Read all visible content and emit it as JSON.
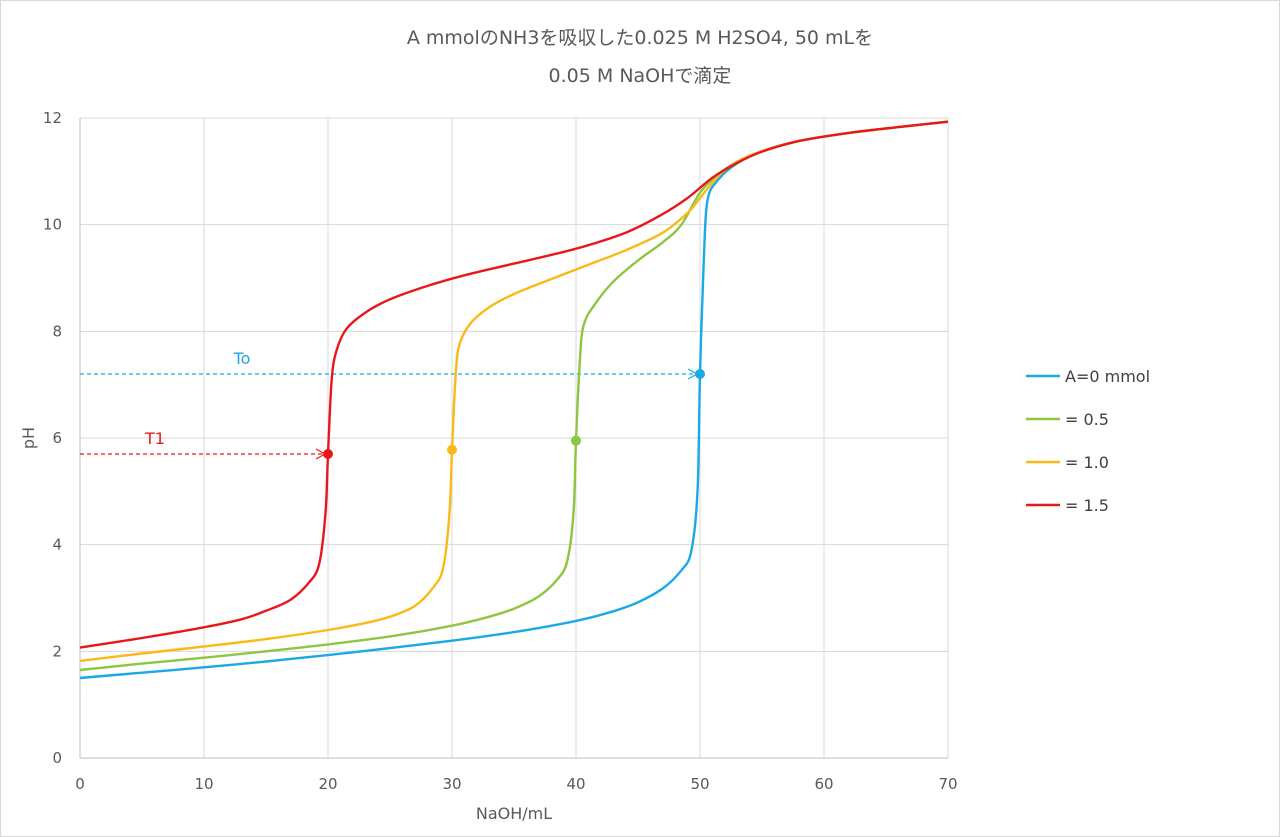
{
  "chart_data": {
    "type": "line",
    "title": [
      "A mmolのNH3を吸収した0.025 M H2SO4, 50 mLを",
      "0.05 M NaOHで滴定"
    ],
    "xlabel": "NaOH/mL",
    "ylabel": "pH",
    "xlim": [
      0,
      70
    ],
    "ylim": [
      0,
      12
    ],
    "xticks": [
      0,
      10,
      20,
      30,
      40,
      50,
      60,
      70
    ],
    "yticks": [
      0,
      2,
      4,
      6,
      8,
      10,
      12
    ],
    "grid": true,
    "legend_position": "right",
    "series": [
      {
        "name": "A=0 mmol",
        "color": "#1ba9e6",
        "points": [
          [
            0,
            1.5
          ],
          [
            5,
            1.6
          ],
          [
            10,
            1.7
          ],
          [
            15,
            1.81
          ],
          [
            20,
            1.93
          ],
          [
            25,
            2.06
          ],
          [
            30,
            2.2
          ],
          [
            35,
            2.36
          ],
          [
            40,
            2.57
          ],
          [
            43,
            2.75
          ],
          [
            45,
            2.92
          ],
          [
            47,
            3.18
          ],
          [
            48.5,
            3.52
          ],
          [
            49.3,
            3.88
          ],
          [
            49.8,
            5.0
          ],
          [
            50,
            7.2
          ],
          [
            50.3,
            9.3
          ],
          [
            50.6,
            10.45
          ],
          [
            51.5,
            10.85
          ],
          [
            53,
            11.15
          ],
          [
            55,
            11.38
          ],
          [
            58,
            11.57
          ],
          [
            62,
            11.72
          ],
          [
            66,
            11.83
          ],
          [
            70,
            11.93
          ]
        ],
        "marker": [
          50,
          7.2
        ]
      },
      {
        "name": "= 0.5",
        "color": "#8dc63f",
        "points": [
          [
            0,
            1.65
          ],
          [
            5,
            1.77
          ],
          [
            10,
            1.88
          ],
          [
            15,
            2.0
          ],
          [
            20,
            2.13
          ],
          [
            25,
            2.28
          ],
          [
            30,
            2.48
          ],
          [
            33,
            2.65
          ],
          [
            35,
            2.8
          ],
          [
            37,
            3.03
          ],
          [
            38.5,
            3.35
          ],
          [
            39.3,
            3.7
          ],
          [
            39.8,
            4.6
          ],
          [
            40,
            5.95
          ],
          [
            40.3,
            7.4
          ],
          [
            40.6,
            8.1
          ],
          [
            41.5,
            8.5
          ],
          [
            43,
            8.93
          ],
          [
            45,
            9.33
          ],
          [
            47,
            9.67
          ],
          [
            48.5,
            10.0
          ],
          [
            50,
            10.6
          ],
          [
            51.5,
            10.95
          ],
          [
            53,
            11.18
          ],
          [
            55,
            11.38
          ],
          [
            58,
            11.57
          ],
          [
            62,
            11.72
          ],
          [
            66,
            11.83
          ],
          [
            70,
            11.93
          ]
        ],
        "marker": [
          40,
          5.95
        ]
      },
      {
        "name": "= 1.0",
        "color": "#fbb917",
        "points": [
          [
            0,
            1.82
          ],
          [
            5,
            1.96
          ],
          [
            10,
            2.09
          ],
          [
            15,
            2.23
          ],
          [
            20,
            2.4
          ],
          [
            23,
            2.53
          ],
          [
            25,
            2.65
          ],
          [
            27,
            2.85
          ],
          [
            28.5,
            3.2
          ],
          [
            29.3,
            3.58
          ],
          [
            29.8,
            4.6
          ],
          [
            30,
            5.78
          ],
          [
            30.3,
            7.2
          ],
          [
            30.6,
            7.75
          ],
          [
            31.5,
            8.15
          ],
          [
            33,
            8.45
          ],
          [
            35,
            8.7
          ],
          [
            38,
            8.98
          ],
          [
            41,
            9.25
          ],
          [
            44,
            9.52
          ],
          [
            47,
            9.85
          ],
          [
            49,
            10.22
          ],
          [
            50,
            10.5
          ],
          [
            51.5,
            10.92
          ],
          [
            53,
            11.18
          ],
          [
            55,
            11.38
          ],
          [
            58,
            11.57
          ],
          [
            62,
            11.72
          ],
          [
            66,
            11.83
          ],
          [
            70,
            11.93
          ]
        ],
        "marker": [
          30,
          5.78
        ]
      },
      {
        "name": "= 1.5",
        "color": "#e8171c",
        "points": [
          [
            0,
            2.07
          ],
          [
            5,
            2.25
          ],
          [
            10,
            2.45
          ],
          [
            13,
            2.6
          ],
          [
            15,
            2.76
          ],
          [
            17,
            2.97
          ],
          [
            18.5,
            3.3
          ],
          [
            19.3,
            3.65
          ],
          [
            19.8,
            4.6
          ],
          [
            20,
            5.7
          ],
          [
            20.3,
            7.1
          ],
          [
            20.7,
            7.65
          ],
          [
            21.5,
            8.05
          ],
          [
            23,
            8.35
          ],
          [
            25,
            8.6
          ],
          [
            28,
            8.85
          ],
          [
            31,
            9.05
          ],
          [
            35,
            9.27
          ],
          [
            40,
            9.55
          ],
          [
            44,
            9.85
          ],
          [
            47,
            10.2
          ],
          [
            49,
            10.5
          ],
          [
            51,
            10.88
          ],
          [
            53,
            11.16
          ],
          [
            55,
            11.37
          ],
          [
            58,
            11.57
          ],
          [
            62,
            11.72
          ],
          [
            66,
            11.83
          ],
          [
            70,
            11.93
          ]
        ],
        "marker": [
          20,
          5.7
        ]
      }
    ],
    "annotations": [
      {
        "text": "To",
        "color": "#1ba9e6",
        "y": 7.2,
        "x_from": 0,
        "x_to": 50
      },
      {
        "text": "T1",
        "color": "#e8171c",
        "y": 5.7,
        "x_from": 0,
        "x_to": 20
      }
    ]
  }
}
